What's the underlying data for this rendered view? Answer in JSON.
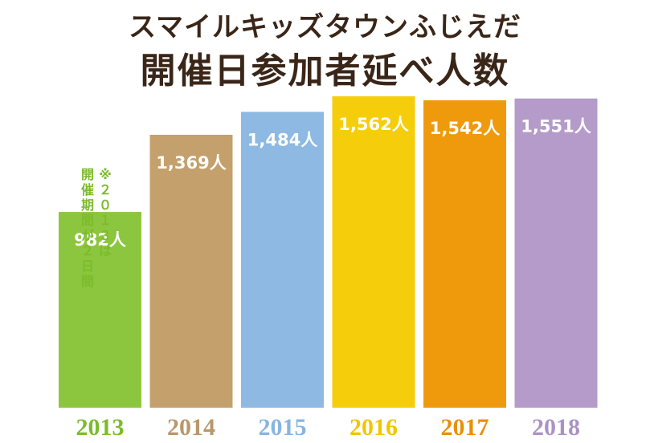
{
  "title": "スマイルキッズタウンふじえだ",
  "subtitle": "開催日参加者延べ人数",
  "note": {
    "lines": [
      "※２０１３は",
      "開催期間が２日間"
    ]
  },
  "chart_data": {
    "type": "bar",
    "title": "スマイルキッズタウンふじえだ 開催日参加者延べ人数",
    "categories": [
      "2013",
      "2014",
      "2015",
      "2016",
      "2017",
      "2018"
    ],
    "values": [
      982,
      1369,
      1484,
      1562,
      1542,
      1551
    ],
    "value_labels": [
      "982人",
      "1,369人",
      "1,484人",
      "1,562人",
      "1,542人",
      "1,551人"
    ],
    "unit": "人",
    "colors": [
      "#8cc63e",
      "#c4a06c",
      "#8db9e2",
      "#f5cd0a",
      "#ee9a0c",
      "#b49bc9"
    ],
    "year_label_colors": [
      "#7cbb2c",
      "#b8976a",
      "#87b5df",
      "#f2c500",
      "#e89008",
      "#aa93c4"
    ],
    "grid": false
  }
}
